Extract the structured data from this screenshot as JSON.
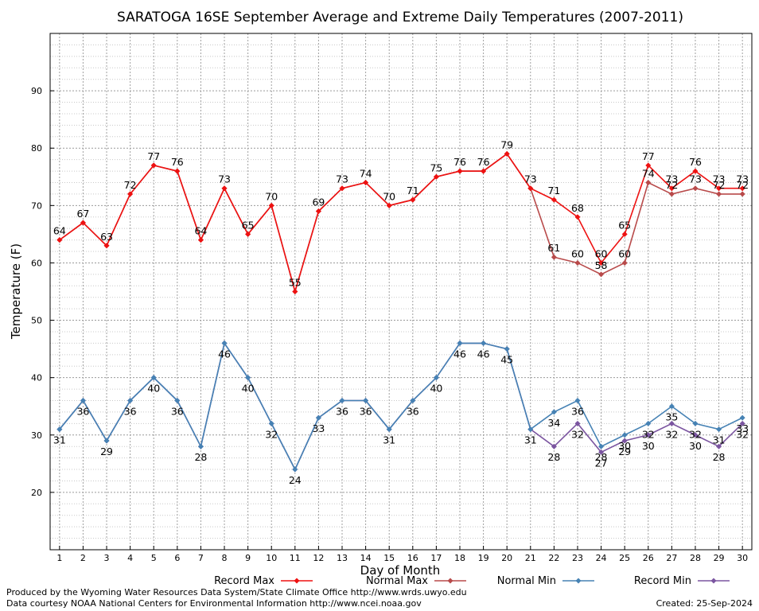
{
  "footer": {
    "produced_by": "Produced by the Wyoming Water Resources Data System/State Climate Office http://www.wrds.uwyo.edu",
    "data_courtesy": "Data courtesy NOAA National Centers for Environmental Information http://www.ncei.noaa.gov",
    "created": "Created:  25-Sep-2024"
  },
  "chart_data": {
    "type": "line",
    "title": "SARATOGA 16SE September Average and Extreme Daily Temperatures (2007-2011)",
    "xlabel": "Day of Month",
    "ylabel": "Temperature (F)",
    "x": [
      1,
      2,
      3,
      4,
      5,
      6,
      7,
      8,
      9,
      10,
      11,
      12,
      13,
      14,
      15,
      16,
      17,
      18,
      19,
      20,
      21,
      22,
      23,
      24,
      25,
      26,
      27,
      28,
      29,
      30
    ],
    "xlim": [
      0.6,
      30.4
    ],
    "ylim": [
      10,
      100
    ],
    "yticks": [
      20,
      30,
      40,
      50,
      60,
      70,
      80,
      90
    ],
    "grid": true,
    "legend_position": "bottom",
    "series": [
      {
        "name": "Record Max",
        "color": "#ee1111",
        "values": [
          64,
          67,
          63,
          72,
          77,
          76,
          64,
          73,
          65,
          70,
          55,
          69,
          73,
          74,
          70,
          71,
          75,
          76,
          76,
          79,
          73,
          71,
          68,
          60,
          65,
          77,
          73,
          76,
          73,
          73
        ]
      },
      {
        "name": "Normal Max",
        "color": "#b84a4a",
        "values": [
          64,
          67,
          63,
          72,
          77,
          76,
          64,
          73,
          65,
          70,
          55,
          69,
          73,
          74,
          70,
          71,
          75,
          76,
          76,
          79,
          73,
          61,
          60,
          58,
          60,
          74,
          72,
          73,
          72,
          72
        ]
      },
      {
        "name": "Normal Min",
        "color": "#4682b4",
        "values": [
          31,
          36,
          29,
          36,
          40,
          36,
          28,
          46,
          40,
          32,
          24,
          33,
          36,
          36,
          31,
          36,
          40,
          46,
          46,
          45,
          31,
          34,
          36,
          28,
          30,
          32,
          35,
          32,
          31,
          33
        ]
      },
      {
        "name": "Record Min",
        "color": "#7b55a0",
        "values": [
          31,
          36,
          29,
          36,
          40,
          36,
          28,
          46,
          40,
          32,
          24,
          33,
          36,
          36,
          31,
          36,
          40,
          46,
          46,
          45,
          31,
          28,
          32,
          27,
          29,
          30,
          32,
          30,
          28,
          32
        ]
      }
    ]
  }
}
